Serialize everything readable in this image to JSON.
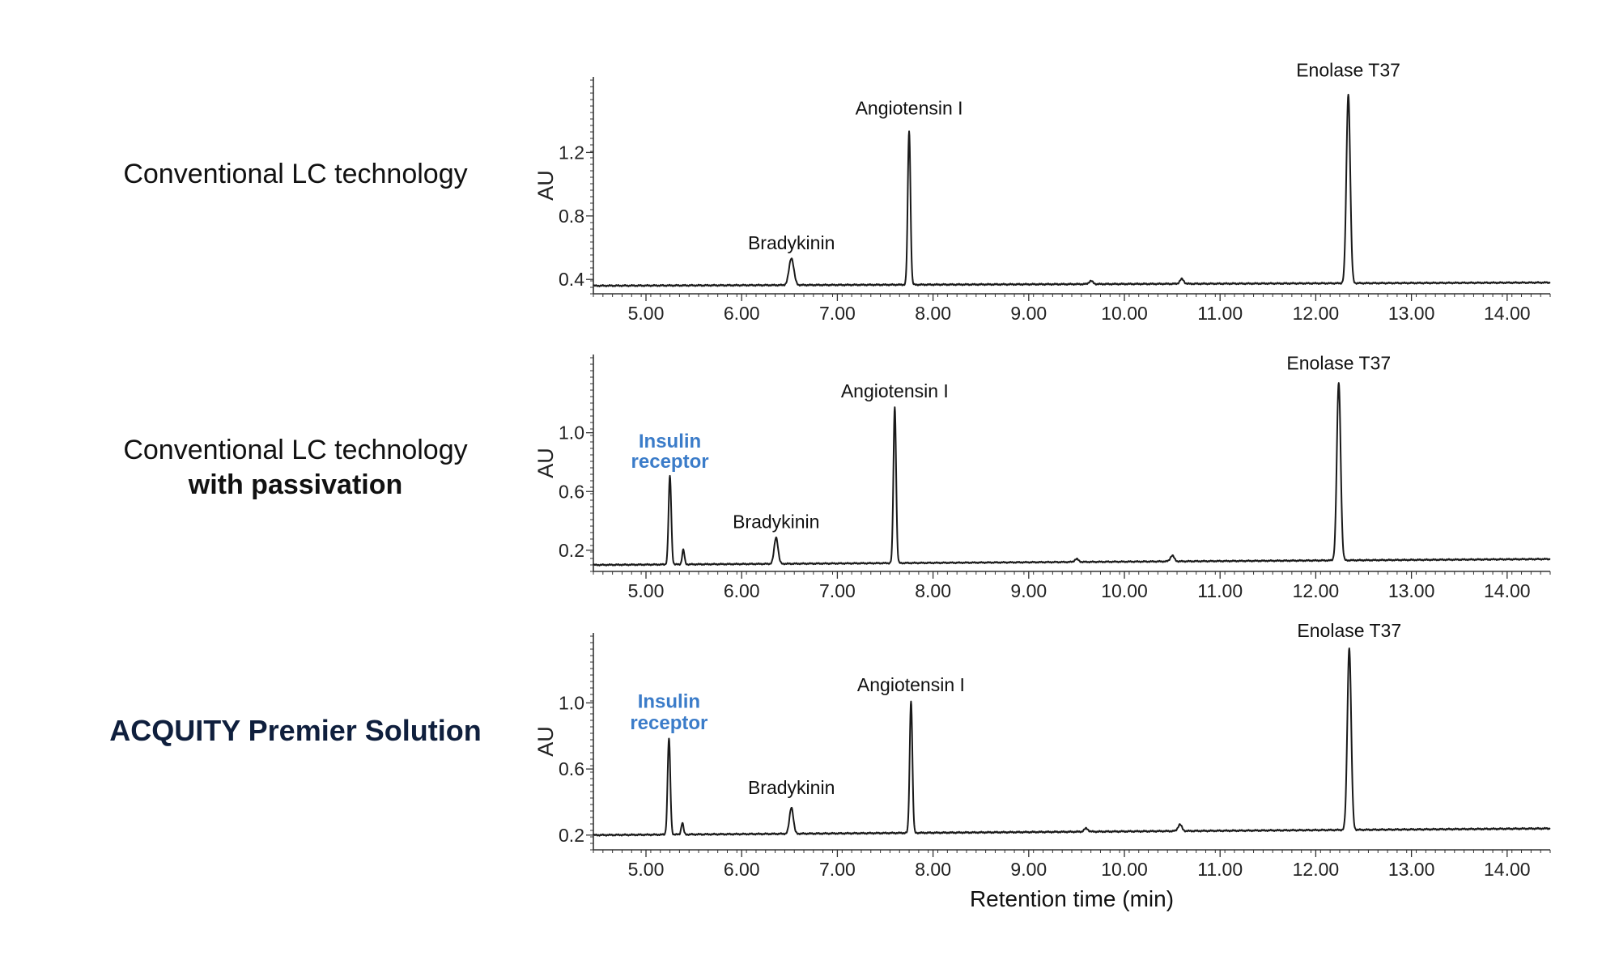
{
  "row_labels": [
    {
      "line1": "Conventional LC technology",
      "line2": ""
    },
    {
      "line1": "Conventional LC technology",
      "line2": "with passivation"
    },
    {
      "line1": "ACQUITY Premier Solution",
      "line2": ""
    }
  ],
  "colors": {
    "trace": "#1a1a1a",
    "axis": "#333333",
    "highlight": "#3b7cc9",
    "premier_label": "#0f1f3d"
  },
  "chart_data": [
    {
      "type": "line",
      "title": "",
      "ylabel": "AU",
      "xlabel": "",
      "xlim": [
        4.45,
        14.45
      ],
      "ylim": [
        0.35,
        1.6
      ],
      "xticks": [
        "5.00",
        "6.00",
        "7.00",
        "8.00",
        "9.00",
        "10.00",
        "11.00",
        "12.00",
        "13.00",
        "14.00"
      ],
      "yticks": [
        "0.4",
        "0.8",
        "1.2"
      ],
      "baseline": [
        [
          4.45,
          0.36
        ],
        [
          14.45,
          0.38
        ]
      ],
      "peaks": [
        {
          "x": 6.52,
          "height": 0.17,
          "width": 0.025
        },
        {
          "x": 7.75,
          "height": 0.97,
          "width": 0.014
        },
        {
          "x": 9.65,
          "height": 0.02,
          "width": 0.02
        },
        {
          "x": 10.6,
          "height": 0.03,
          "width": 0.02
        },
        {
          "x": 12.34,
          "height": 1.19,
          "width": 0.02
        }
      ],
      "annotations": [
        {
          "text": "Bradykinin",
          "x": 6.52,
          "y": 0.59,
          "highlight": false
        },
        {
          "text": "Angiotensin I",
          "x": 7.75,
          "y": 1.44,
          "highlight": false
        },
        {
          "text": "Enolase T37",
          "x": 12.34,
          "y": 1.68,
          "highlight": false
        }
      ]
    },
    {
      "type": "line",
      "title": "",
      "ylabel": "AU",
      "xlabel": "",
      "xlim": [
        4.45,
        14.45
      ],
      "ylim": [
        0.1,
        1.45
      ],
      "xticks": [
        "5.00",
        "6.00",
        "7.00",
        "8.00",
        "9.00",
        "10.00",
        "11.00",
        "12.00",
        "13.00",
        "14.00"
      ],
      "yticks": [
        "0.2",
        "0.6",
        "1.0"
      ],
      "baseline": [
        [
          4.45,
          0.1
        ],
        [
          14.45,
          0.14
        ]
      ],
      "peaks": [
        {
          "x": 5.25,
          "height": 0.6,
          "width": 0.014
        },
        {
          "x": 5.39,
          "height": 0.1,
          "width": 0.012
        },
        {
          "x": 6.36,
          "height": 0.18,
          "width": 0.02
        },
        {
          "x": 7.6,
          "height": 1.06,
          "width": 0.014
        },
        {
          "x": 9.5,
          "height": 0.02,
          "width": 0.02
        },
        {
          "x": 10.5,
          "height": 0.04,
          "width": 0.02
        },
        {
          "x": 12.24,
          "height": 1.21,
          "width": 0.02
        }
      ],
      "annotations": [
        {
          "text": "Insulin",
          "x": 5.25,
          "y": 0.9,
          "highlight": true
        },
        {
          "text": "receptor",
          "x": 5.25,
          "y": 0.76,
          "highlight": true
        },
        {
          "text": "Bradykinin",
          "x": 6.36,
          "y": 0.35,
          "highlight": false
        },
        {
          "text": "Angiotensin I",
          "x": 7.6,
          "y": 1.24,
          "highlight": false
        },
        {
          "text": "Enolase T37",
          "x": 12.24,
          "y": 1.43,
          "highlight": false
        }
      ]
    },
    {
      "type": "line",
      "title": "",
      "ylabel": "AU",
      "xlabel": "Retention time (min)",
      "xlim": [
        4.45,
        14.45
      ],
      "ylim": [
        0.15,
        1.35
      ],
      "xticks": [
        "5.00",
        "6.00",
        "7.00",
        "8.00",
        "9.00",
        "10.00",
        "11.00",
        "12.00",
        "13.00",
        "14.00"
      ],
      "yticks": [
        "0.2",
        "0.6",
        "1.0"
      ],
      "baseline": [
        [
          4.45,
          0.2
        ],
        [
          14.45,
          0.24
        ]
      ],
      "peaks": [
        {
          "x": 5.24,
          "height": 0.58,
          "width": 0.014
        },
        {
          "x": 5.38,
          "height": 0.07,
          "width": 0.012
        },
        {
          "x": 6.52,
          "height": 0.16,
          "width": 0.02
        },
        {
          "x": 7.77,
          "height": 0.8,
          "width": 0.014
        },
        {
          "x": 9.6,
          "height": 0.02,
          "width": 0.02
        },
        {
          "x": 10.58,
          "height": 0.04,
          "width": 0.02
        },
        {
          "x": 12.35,
          "height": 1.1,
          "width": 0.02
        }
      ],
      "annotations": [
        {
          "text": "Insulin",
          "x": 5.24,
          "y": 0.97,
          "highlight": true
        },
        {
          "text": "receptor",
          "x": 5.24,
          "y": 0.84,
          "highlight": true
        },
        {
          "text": "Bradykinin",
          "x": 6.52,
          "y": 0.45,
          "highlight": false
        },
        {
          "text": "Angiotensin I",
          "x": 7.77,
          "y": 1.07,
          "highlight": false
        },
        {
          "text": "Enolase T37",
          "x": 12.35,
          "y": 1.4,
          "highlight": false
        }
      ]
    }
  ]
}
